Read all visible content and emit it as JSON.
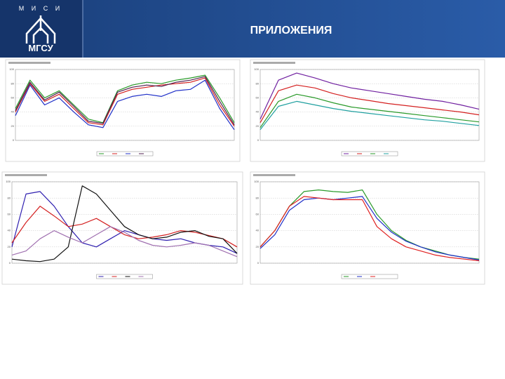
{
  "header": {
    "title": "ПРИЛОЖЕНИЯ",
    "logo_top": "М И С И",
    "logo_name": "МГСУ"
  },
  "charts": [
    {
      "type": "line",
      "ylim": [
        0,
        100
      ],
      "yticks": [
        0,
        20,
        40,
        60,
        80,
        100
      ],
      "grid": true,
      "series": [
        {
          "color": "#2a9a2a",
          "values": [
            45,
            85,
            60,
            70,
            50,
            30,
            25,
            70,
            78,
            82,
            80,
            85,
            88,
            92,
            60,
            25
          ]
        },
        {
          "color": "#d42020",
          "values": [
            40,
            80,
            55,
            65,
            45,
            25,
            22,
            65,
            72,
            75,
            78,
            80,
            82,
            88,
            50,
            20
          ]
        },
        {
          "color": "#2030c8",
          "values": [
            35,
            78,
            50,
            60,
            40,
            22,
            18,
            55,
            62,
            65,
            62,
            70,
            72,
            85,
            45,
            15
          ]
        },
        {
          "color": "#502050",
          "values": [
            42,
            82,
            57,
            68,
            48,
            27,
            24,
            68,
            75,
            78,
            76,
            82,
            85,
            90,
            55,
            22
          ]
        }
      ]
    },
    {
      "type": "line",
      "ylim": [
        0,
        100
      ],
      "yticks": [
        0,
        20,
        40,
        60,
        80,
        100
      ],
      "grid": true,
      "series": [
        {
          "color": "#7020a0",
          "values": [
            30,
            85,
            95,
            88,
            80,
            74,
            70,
            66,
            62,
            58,
            55,
            50,
            44
          ]
        },
        {
          "color": "#d42020",
          "values": [
            25,
            70,
            78,
            74,
            66,
            60,
            56,
            52,
            49,
            46,
            43,
            40,
            36
          ]
        },
        {
          "color": "#2a9a2a",
          "values": [
            18,
            55,
            65,
            60,
            53,
            47,
            44,
            41,
            38,
            35,
            32,
            29,
            26
          ]
        },
        {
          "color": "#20a0a0",
          "values": [
            15,
            48,
            55,
            50,
            45,
            41,
            38,
            35,
            32,
            29,
            27,
            24,
            21
          ]
        }
      ]
    },
    {
      "type": "line",
      "ylim": [
        0,
        100
      ],
      "yticks": [
        0,
        20,
        40,
        60,
        80,
        100
      ],
      "grid": true,
      "series": [
        {
          "color": "#3020b0",
          "values": [
            20,
            85,
            88,
            70,
            45,
            25,
            20,
            30,
            40,
            35,
            30,
            28,
            30,
            25,
            22,
            20,
            12
          ]
        },
        {
          "color": "#d42020",
          "values": [
            25,
            50,
            70,
            58,
            45,
            48,
            55,
            45,
            35,
            30,
            32,
            35,
            40,
            38,
            34,
            30,
            20
          ]
        },
        {
          "color": "#111111",
          "values": [
            5,
            3,
            2,
            5,
            20,
            95,
            85,
            65,
            45,
            35,
            30,
            32,
            38,
            40,
            33,
            30,
            12
          ]
        },
        {
          "color": "#a070b0",
          "values": [
            10,
            15,
            30,
            40,
            32,
            25,
            35,
            45,
            38,
            28,
            22,
            20,
            22,
            25,
            22,
            15,
            8
          ]
        }
      ]
    },
    {
      "type": "line",
      "ylim": [
        0,
        100
      ],
      "yticks": [
        0,
        20,
        40,
        60,
        80,
        100
      ],
      "grid": true,
      "series": [
        {
          "color": "#2a9a2a",
          "values": [
            20,
            40,
            70,
            88,
            90,
            88,
            87,
            90,
            60,
            40,
            28,
            20,
            15,
            10,
            7,
            5
          ]
        },
        {
          "color": "#2030c8",
          "values": [
            18,
            35,
            65,
            78,
            80,
            78,
            80,
            82,
            55,
            38,
            27,
            20,
            14,
            10,
            7,
            4
          ]
        },
        {
          "color": "#e02020",
          "values": [
            20,
            40,
            70,
            82,
            80,
            78,
            78,
            78,
            45,
            30,
            20,
            15,
            10,
            7,
            5,
            3
          ]
        }
      ]
    }
  ]
}
